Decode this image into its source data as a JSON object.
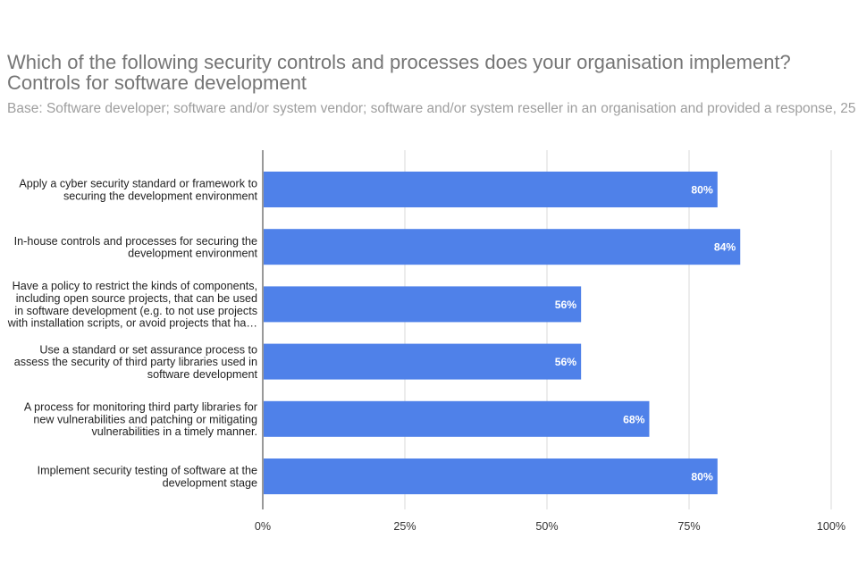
{
  "title_line1": "Which of the following security controls and processes does your organisation implement?",
  "title_line2": "Controls for software development",
  "subtitle": "Base: Software developer; software and/or system vendor; software and/or system reseller in an organisation and provided a response, 25",
  "colors": {
    "bar": "#4f81e9",
    "grid": "#d9d9d9",
    "axis": "#333333"
  },
  "chart_data": {
    "type": "bar",
    "orientation": "horizontal",
    "title": "Which of the following security controls and processes does your organisation implement? Controls for software development",
    "xlabel": "",
    "ylabel": "",
    "xlim": [
      0,
      100
    ],
    "xticks": [
      0,
      25,
      50,
      75,
      100
    ],
    "xtick_labels": [
      "0%",
      "25%",
      "50%",
      "75%",
      "100%"
    ],
    "categories": [
      [
        "Apply a cyber security standard or framework to",
        "securing the development environment"
      ],
      [
        "In-house controls and processes for securing the",
        "development environment"
      ],
      [
        "Have a policy to restrict the kinds of components,",
        "including open source projects, that can be used",
        "in software development (e.g. to not use projects",
        "with installation scripts, or avoid projects that ha…"
      ],
      [
        "Use a standard or set assurance process to",
        "assess the security of third party libraries used in",
        "software development"
      ],
      [
        "A process for monitoring third party libraries for",
        "new vulnerabilities and patching or mitigating",
        "vulnerabilities in a timely manner."
      ],
      [
        "Implement security testing of software at the",
        "development stage"
      ]
    ],
    "values": [
      80,
      84,
      56,
      56,
      68,
      80
    ],
    "data_labels": [
      "80%",
      "84%",
      "56%",
      "56%",
      "68%",
      "80%"
    ],
    "grid": true,
    "legend": "none"
  }
}
